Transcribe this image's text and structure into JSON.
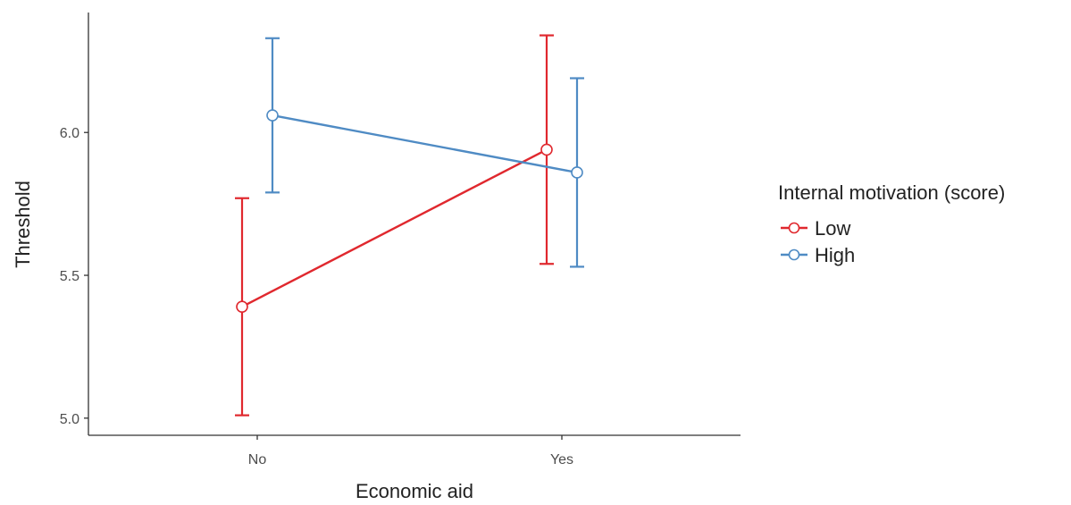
{
  "chart_data": {
    "type": "line",
    "xlabel": "Economic aid",
    "ylabel": "Threshold",
    "categories": [
      "No",
      "Yes"
    ],
    "ylim": [
      4.94,
      6.42
    ],
    "yticks": [
      5.0,
      5.5,
      6.0
    ],
    "ytick_labels": [
      "5.0",
      "5.5",
      "6.0"
    ],
    "grid": false,
    "legend": {
      "title": "Internal motivation (score)",
      "placement": "right"
    },
    "series": [
      {
        "name": "Low",
        "color": "#e0282e",
        "values": [
          5.39,
          5.94
        ],
        "error_low": [
          5.01,
          5.54
        ],
        "error_high": [
          5.77,
          6.34
        ]
      },
      {
        "name": "High",
        "color": "#4f8bc4",
        "values": [
          6.06,
          5.86
        ],
        "error_low": [
          5.79,
          5.53
        ],
        "error_high": [
          6.33,
          6.19
        ]
      }
    ]
  }
}
